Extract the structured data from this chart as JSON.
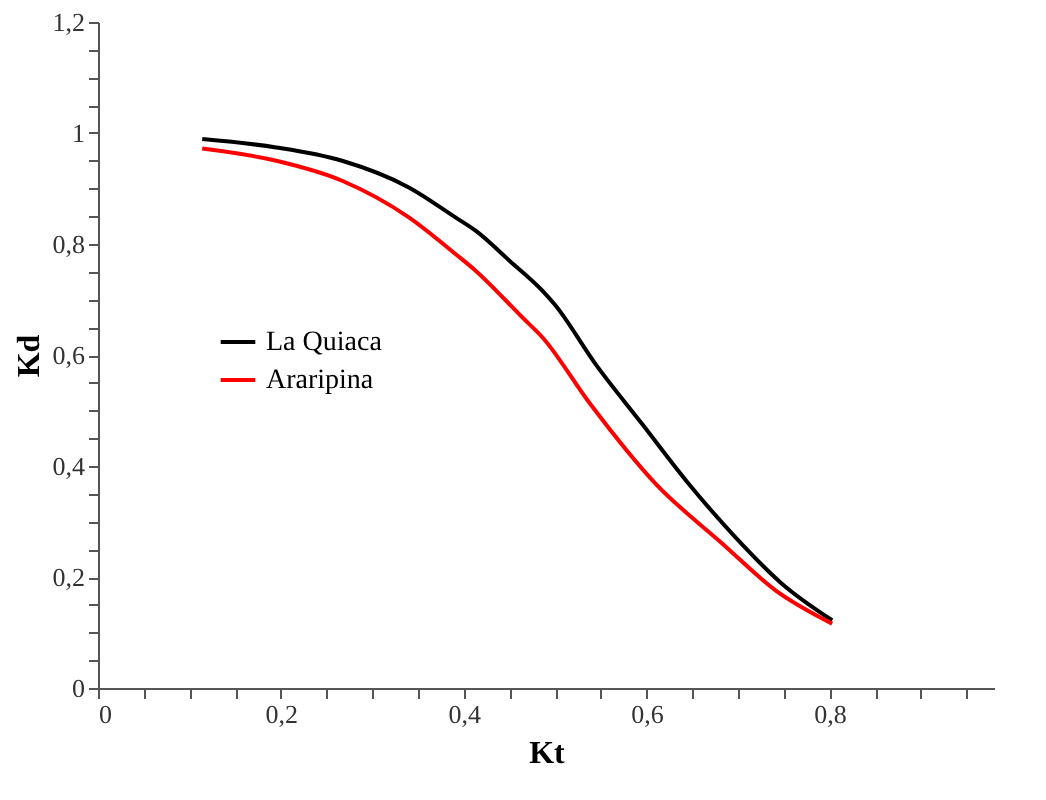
{
  "chart_data": {
    "type": "line",
    "xlabel": "Kt",
    "ylabel": "Kd",
    "xlim": [
      0,
      0.98
    ],
    "ylim": [
      0,
      1.2
    ],
    "xticks": [
      0,
      {
        "value": 0.05,
        "label": null
      },
      {
        "value": 0.1,
        "label": null
      },
      {
        "value": 0.15,
        "label": null
      },
      {
        "value": 0.2,
        "label": "0,2"
      },
      {
        "value": 0.25,
        "label": null
      },
      {
        "value": 0.3,
        "label": null
      },
      {
        "value": 0.35,
        "label": null
      },
      {
        "value": 0.4,
        "label": "0,4"
      },
      {
        "value": 0.45,
        "label": null
      },
      {
        "value": 0.5,
        "label": null
      },
      {
        "value": 0.55,
        "label": null
      },
      {
        "value": 0.6,
        "label": "0,6"
      },
      {
        "value": 0.65,
        "label": null
      },
      {
        "value": 0.7,
        "label": null
      },
      {
        "value": 0.75,
        "label": null
      },
      {
        "value": 0.8,
        "label": "0,8"
      },
      {
        "value": 0.85,
        "label": null
      },
      {
        "value": 0.9,
        "label": null
      },
      {
        "value": 0.95,
        "label": null
      }
    ],
    "yticks": [
      0,
      {
        "value": 0.05,
        "label": null
      },
      {
        "value": 0.1,
        "label": null
      },
      {
        "value": 0.15,
        "label": null
      },
      {
        "value": 0.2,
        "label": "0,2"
      },
      {
        "value": 0.25,
        "label": null
      },
      {
        "value": 0.3,
        "label": null
      },
      {
        "value": 0.35,
        "label": null
      },
      {
        "value": 0.4,
        "label": "0,4"
      },
      {
        "value": 0.45,
        "label": null
      },
      {
        "value": 0.5,
        "label": null
      },
      {
        "value": 0.55,
        "label": null
      },
      {
        "value": 0.6,
        "label": "0,6"
      },
      {
        "value": 0.65,
        "label": null
      },
      {
        "value": 0.7,
        "label": null
      },
      {
        "value": 0.75,
        "label": null
      },
      {
        "value": 0.8,
        "label": "0,8"
      },
      {
        "value": 0.85,
        "label": null
      },
      {
        "value": 0.9,
        "label": null
      },
      {
        "value": 0.95,
        "label": null
      },
      1,
      {
        "value": 1.05,
        "label": null
      },
      {
        "value": 1.1,
        "label": null
      },
      {
        "value": 1.15,
        "label": null
      },
      {
        "value": 1.2,
        "label": "1,2"
      }
    ],
    "grid": false,
    "legend": "left",
    "marker": "none",
    "line_style": "solid",
    "series": [
      {
        "name": "La Quiaca",
        "color": "#000000",
        "x": [
          0.114,
          0.195,
          0.267,
          0.34,
          0.391,
          0.413,
          0.45,
          0.486,
          0.5,
          0.544,
          0.595,
          0.646,
          0.697,
          0.748,
          0.803
        ],
        "values": [
          0.989,
          0.974,
          0.95,
          0.902,
          0.848,
          0.824,
          0.77,
          0.716,
          0.69,
          0.584,
          0.476,
          0.368,
          0.272,
          0.188,
          0.122
        ]
      },
      {
        "name": "Araripina",
        "color": "#ff0000",
        "x": [
          0.114,
          0.195,
          0.267,
          0.34,
          0.391,
          0.413,
          0.464,
          0.486,
          0.537,
          0.61,
          0.683,
          0.741,
          0.803
        ],
        "values": [
          0.972,
          0.95,
          0.914,
          0.848,
          0.782,
          0.752,
          0.668,
          0.632,
          0.515,
          0.368,
          0.26,
          0.176,
          0.116
        ]
      }
    ]
  }
}
